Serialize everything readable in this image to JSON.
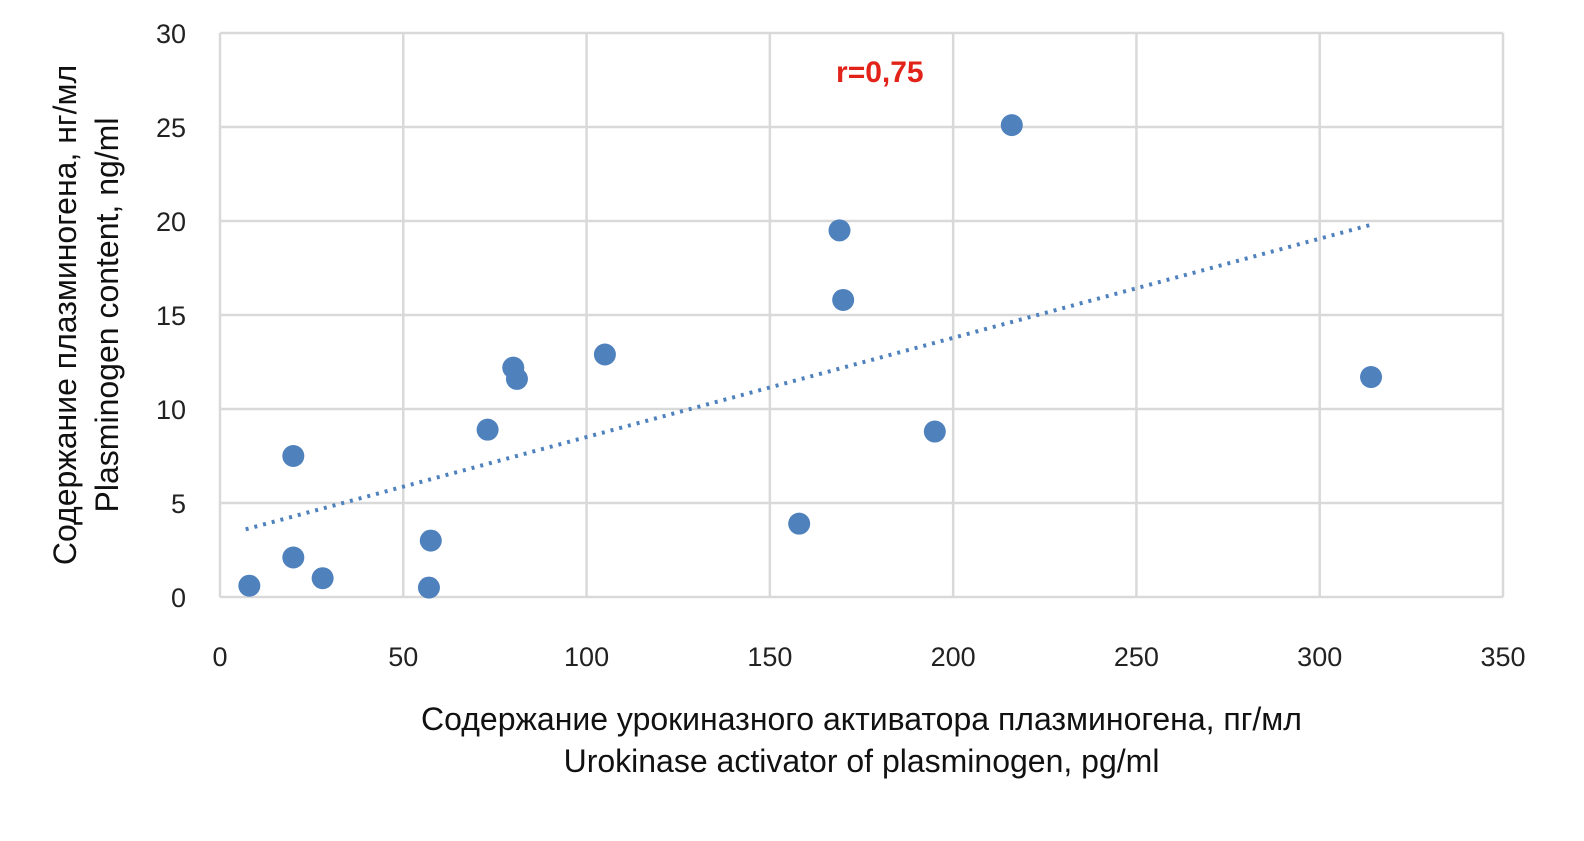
{
  "chart_data": {
    "type": "scatter",
    "title": "",
    "xlabel_lines": [
      "Содержание урокиназного активатора плазминогена, пг/мл",
      "Urokinase activator of plasminogen, pg/ml"
    ],
    "ylabel_lines": [
      "Содержание плазминогена, нг/мл",
      "Plasminogen content, ng/ml"
    ],
    "xlim": [
      0,
      350
    ],
    "ylim": [
      0,
      30
    ],
    "x_ticks": [
      0,
      50,
      100,
      150,
      200,
      250,
      300,
      350
    ],
    "y_ticks": [
      0,
      5,
      10,
      15,
      20,
      25,
      30
    ],
    "grid": true,
    "legend": "none",
    "series": [
      {
        "points": [
          {
            "x": 8,
            "y": 0.6
          },
          {
            "x": 20,
            "y": 7.5
          },
          {
            "x": 20,
            "y": 2.1
          },
          {
            "x": 28,
            "y": 1.0
          },
          {
            "x": 57,
            "y": 0.5
          },
          {
            "x": 57.5,
            "y": 3.0
          },
          {
            "x": 73,
            "y": 8.9
          },
          {
            "x": 80,
            "y": 12.2
          },
          {
            "x": 81,
            "y": 11.6
          },
          {
            "x": 105,
            "y": 12.9
          },
          {
            "x": 158,
            "y": 3.9
          },
          {
            "x": 169,
            "y": 19.5
          },
          {
            "x": 170,
            "y": 15.8
          },
          {
            "x": 195,
            "y": 8.8
          },
          {
            "x": 216,
            "y": 25.1
          },
          {
            "x": 314,
            "y": 11.7
          }
        ]
      }
    ],
    "trendline": {
      "style": "dotted",
      "x_start": 7,
      "y_start": 3.6,
      "x_end": 314,
      "y_end": 19.8
    },
    "annotation": {
      "text": "r=0,75",
      "x": 180,
      "y": 27.4
    },
    "colors": {
      "marker": "#4f81bd",
      "trendline": "#4f81bd",
      "grid": "#d9d9d9",
      "annotation": "#e2231a"
    }
  }
}
